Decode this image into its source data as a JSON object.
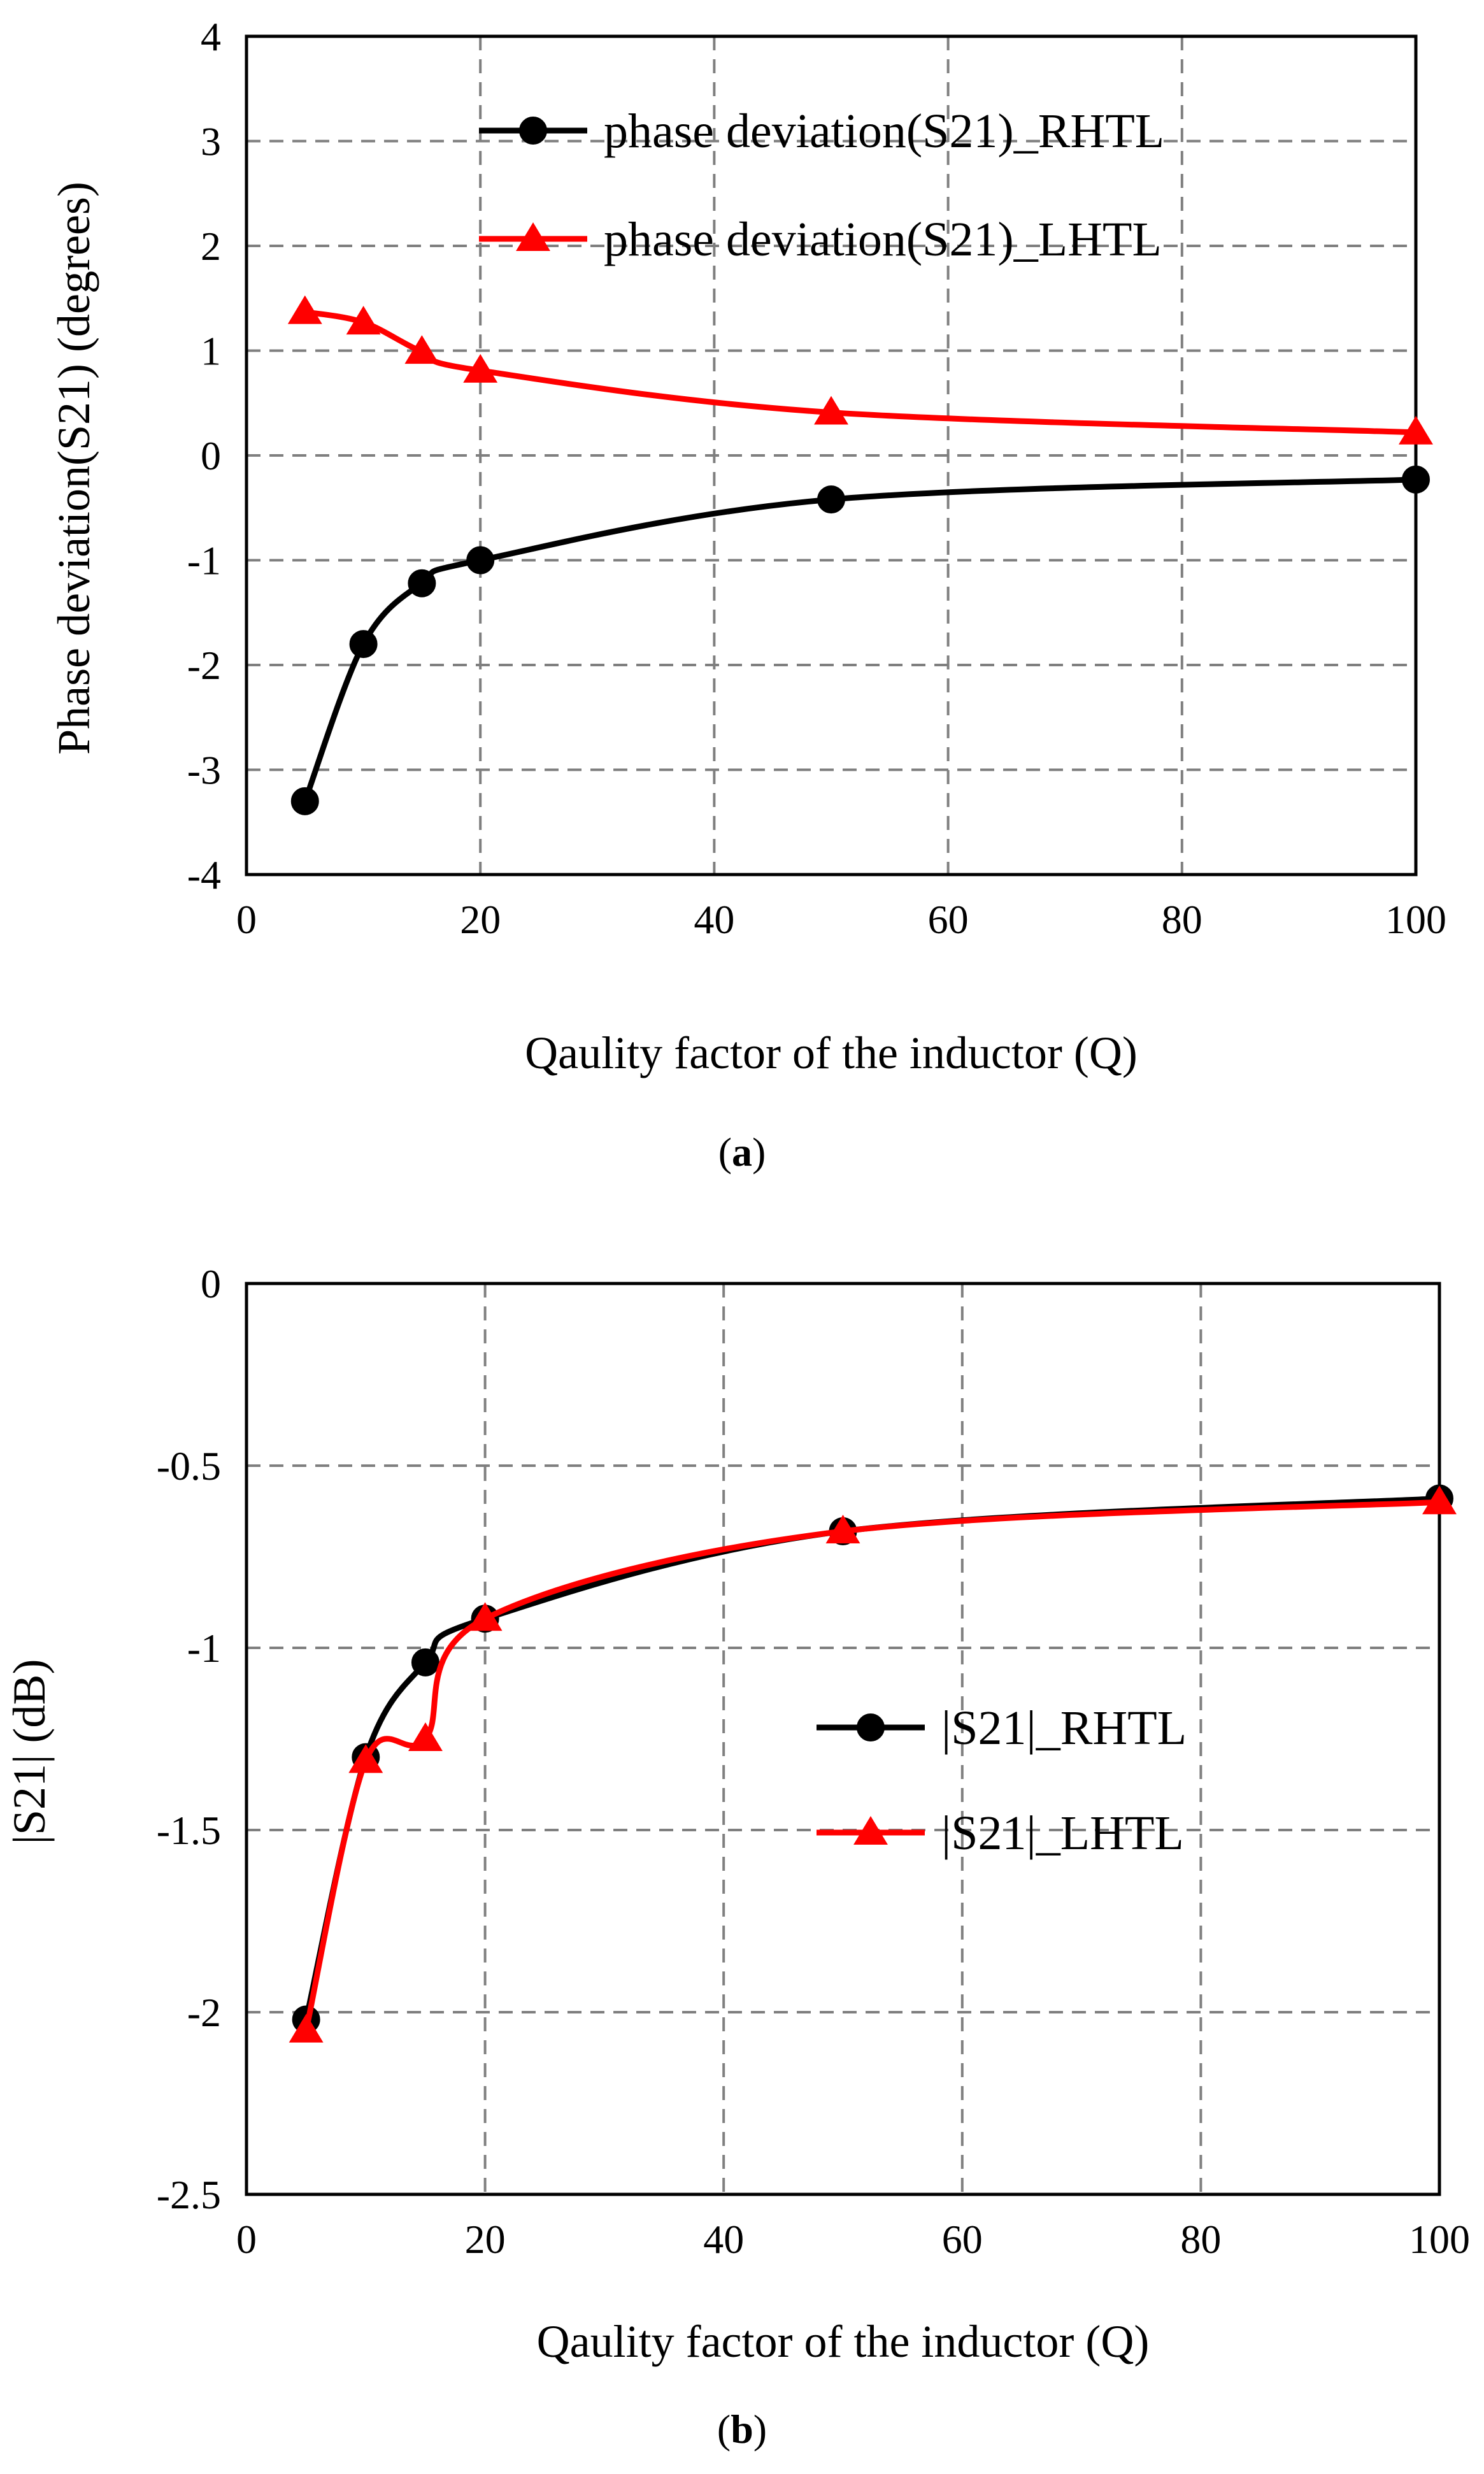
{
  "chart_data": [
    {
      "id": "a",
      "type": "line",
      "caption": "a",
      "title": "",
      "xlabel": "Qaulity factor of the inductor (Q)",
      "ylabel": "Phase deviation(S21)  (degrees)",
      "xlim": [
        0,
        100
      ],
      "ylim": [
        -4,
        4
      ],
      "xticks": [
        0,
        20,
        40,
        60,
        80,
        100
      ],
      "yticks": [
        -4,
        -3,
        -2,
        -1,
        0,
        1,
        2,
        3,
        4
      ],
      "xgrid": [
        20,
        40,
        60,
        80
      ],
      "ygrid": [
        -3,
        -2,
        -1,
        1,
        2,
        3
      ],
      "hline": 0,
      "grid": true,
      "legend_position": "top-right",
      "series": [
        {
          "name": "phase deviation(S21)_RHTL",
          "color": "#000000",
          "marker": "circle",
          "x": [
            5,
            10,
            15,
            20,
            50,
            100
          ],
          "y": [
            -3.3,
            -1.8,
            -1.22,
            -1.0,
            -0.42,
            -0.23
          ]
        },
        {
          "name": "phase deviation(S21)_LHTL",
          "color": "#ff0000",
          "marker": "triangle",
          "x": [
            5,
            10,
            15,
            20,
            50,
            100
          ],
          "y": [
            1.37,
            1.27,
            0.99,
            0.81,
            0.41,
            0.22
          ]
        }
      ]
    },
    {
      "id": "b",
      "type": "line",
      "caption": "b",
      "title": "",
      "xlabel": "Qaulity factor of the inductor (Q)",
      "ylabel": "|S21| (dB)",
      "xlim": [
        0,
        100
      ],
      "ylim": [
        -2.5,
        0
      ],
      "xticks": [
        0,
        20,
        40,
        60,
        80,
        100
      ],
      "yticks": [
        -2.5,
        -2,
        -1.5,
        -1,
        -0.5,
        0
      ],
      "xgrid": [
        20,
        40,
        60,
        80
      ],
      "ygrid": [
        -2,
        -1.5,
        -1,
        -0.5
      ],
      "grid": true,
      "legend_position": "center-right",
      "series": [
        {
          "name": "|S21|_RHTL",
          "color": "#000000",
          "marker": "circle",
          "x": [
            5,
            10,
            15,
            20,
            50,
            100
          ],
          "y": [
            -2.02,
            -1.3,
            -1.04,
            -0.92,
            -0.68,
            -0.59
          ]
        },
        {
          "name": "|S21|_LHTL",
          "color": "#ff0000",
          "marker": "triangle",
          "x": [
            5,
            10,
            15,
            20,
            50,
            100
          ],
          "y": [
            -2.05,
            -1.31,
            -1.25,
            -0.92,
            -0.68,
            -0.6
          ]
        }
      ]
    }
  ]
}
